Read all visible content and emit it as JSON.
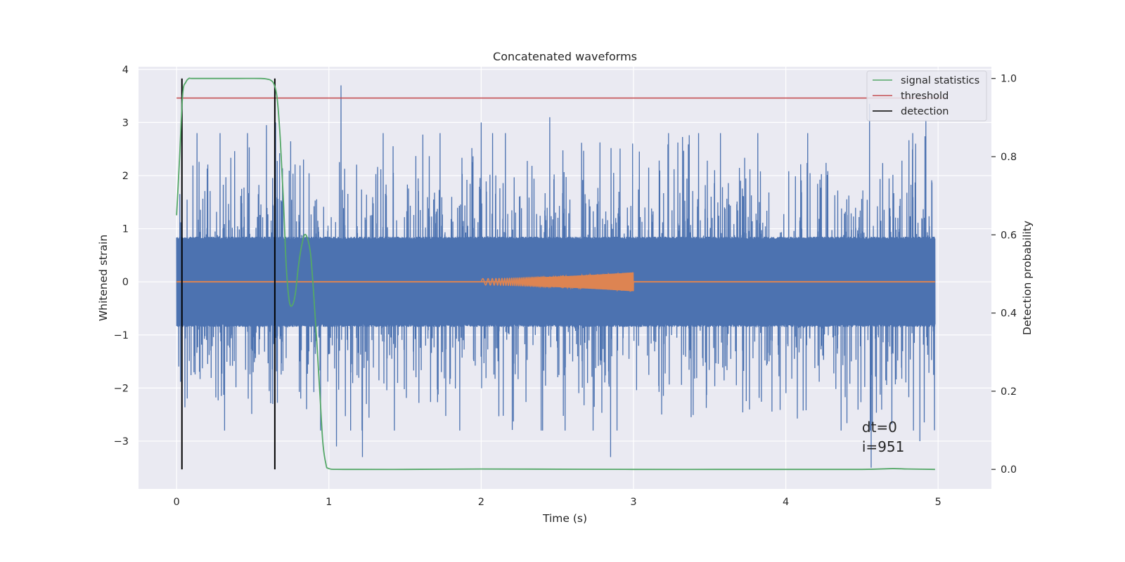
{
  "chart_data": {
    "type": "line",
    "title": "Concatenated waveforms",
    "xlabel": "Time (s)",
    "ylabel": "Whitened strain",
    "ylabel_right": "Detection probability",
    "xlim": [
      -0.25,
      5.35
    ],
    "ylim": [
      -3.9,
      4.05
    ],
    "ylim_right": [
      -0.05,
      1.03
    ],
    "x_ticks": [
      0,
      1,
      2,
      3,
      4,
      5
    ],
    "y_ticks": [
      -3,
      -2,
      -1,
      0,
      1,
      2,
      3,
      4
    ],
    "y_ticks_right": [
      0.0,
      0.2,
      0.4,
      0.6,
      0.8,
      1.0
    ],
    "x_tick_labels": [
      "0",
      "1",
      "2",
      "3",
      "4",
      "5"
    ],
    "y_tick_labels": [
      "−3",
      "−2",
      "−1",
      "0",
      "1",
      "2",
      "3",
      "4"
    ],
    "y_tick_labels_right": [
      "0.0",
      "0.2",
      "0.4",
      "0.6",
      "0.8",
      "1.0"
    ],
    "grid": true,
    "legend_position": "top-right",
    "colors": {
      "background": "#eaeaf2",
      "noise": "#4c72b0",
      "waveform": "#dd8452",
      "signal": "#55a868",
      "threshold": "#c44e52",
      "detection": "#000000"
    },
    "series": [
      {
        "name": "",
        "kind": "noise",
        "x_range": [
          0,
          4.98
        ],
        "envelope_abs": 0.8,
        "spike_max": 3.7,
        "spike_min": -3.5,
        "peaks": [
          [
            1.08,
            3.7
          ],
          [
            4.55,
            3.35
          ],
          [
            2.0,
            3.0
          ],
          [
            0.65,
            3.0
          ],
          [
            0.59,
            2.95
          ],
          [
            4.92,
            3.05
          ],
          [
            2.45,
            3.1
          ],
          [
            1.05,
            -3.1
          ],
          [
            1.22,
            -3.3
          ],
          [
            2.85,
            -3.3
          ],
          [
            4.56,
            -3.5
          ],
          [
            4.88,
            -3.0
          ]
        ]
      },
      {
        "name": "",
        "kind": "chirp",
        "x_range": [
          2.0,
          3.0
        ],
        "amp_start": 0.06,
        "amp_end": 0.18
      },
      {
        "name": "signal statistics",
        "axis": "right",
        "x": [
          0.0,
          0.02,
          0.04,
          0.06,
          0.08,
          0.1,
          0.2,
          0.4,
          0.55,
          0.6,
          0.62,
          0.64,
          0.66,
          0.68,
          0.7,
          0.72,
          0.74,
          0.76,
          0.78,
          0.8,
          0.82,
          0.84,
          0.86,
          0.88,
          0.9,
          0.92,
          0.94,
          0.96,
          0.98,
          1.0,
          1.1,
          1.5,
          2.0,
          3.0,
          4.0,
          4.5,
          4.7,
          4.8,
          4.98
        ],
        "y": [
          0.65,
          0.8,
          0.96,
          0.99,
          1.0,
          1.0,
          1.0,
          1.0,
          1.0,
          0.998,
          0.995,
          0.985,
          0.95,
          0.85,
          0.7,
          0.52,
          0.43,
          0.42,
          0.45,
          0.52,
          0.57,
          0.6,
          0.59,
          0.55,
          0.45,
          0.33,
          0.2,
          0.07,
          0.015,
          0.002,
          0.0,
          0.0,
          0.001,
          0.0,
          0.0,
          0.0,
          0.002,
          0.001,
          0.0
        ]
      },
      {
        "name": "threshold",
        "axis": "right",
        "x": [
          0,
          5.05
        ],
        "y": [
          0.95,
          0.95
        ]
      },
      {
        "name": "detection",
        "axis": "right",
        "kind": "vlines",
        "x": [
          0.035,
          0.645
        ],
        "y_range": [
          0.0,
          1.0
        ]
      }
    ],
    "annotations": [
      "dt=0",
      "i=951"
    ]
  }
}
